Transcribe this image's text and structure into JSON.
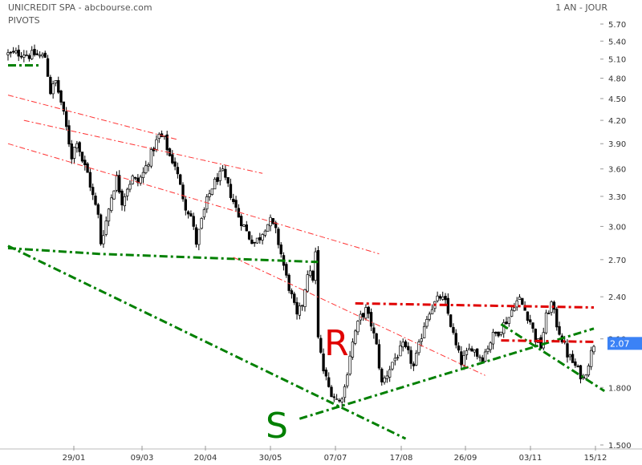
{
  "header": {
    "title": "UNICREDIT SPA - abcbourse.com",
    "subtitle": "PIVOTS",
    "period": "1 AN - JOUR"
  },
  "colors": {
    "support": "#008000",
    "resistance": "#e00000",
    "channel": "#ff3333",
    "candle": "#000000",
    "last_price_bg": "#3b82f6"
  },
  "markers": {
    "resistance_letter": "R",
    "support_letter": "S"
  },
  "chart_data": {
    "type": "candlestick",
    "title": "UNICREDIT SPA - abcbourse.com",
    "indicator": "PIVOTS",
    "period": "1 AN - JOUR",
    "y_scale": "log",
    "ylim": [
      1.5,
      5.7
    ],
    "y_ticks": [
      "5.70",
      "5.40",
      "5.10",
      "4.80",
      "4.50",
      "4.20",
      "3.90",
      "3.60",
      "3.30",
      "3.00",
      "2.70",
      "2.40",
      "2.10",
      "1.800",
      "1.500"
    ],
    "x_ticks": [
      "29/01",
      "09/03",
      "20/04",
      "30/05",
      "07/07",
      "17/08",
      "26/09",
      "03/11",
      "15/12"
    ],
    "last_price": "2.07",
    "price_path": [
      [
        0,
        5.18
      ],
      [
        6,
        5.2
      ],
      [
        8,
        5.16
      ],
      [
        10,
        5.18
      ],
      [
        12,
        5.15
      ],
      [
        14,
        5.14
      ],
      [
        16,
        4.6
      ],
      [
        18,
        4.75
      ],
      [
        20,
        4.45
      ],
      [
        22,
        4.1
      ],
      [
        24,
        3.75
      ],
      [
        26,
        3.95
      ],
      [
        28,
        3.7
      ],
      [
        30,
        3.55
      ],
      [
        32,
        3.3
      ],
      [
        34,
        3.1
      ],
      [
        35,
        2.85
      ],
      [
        37,
        3.05
      ],
      [
        39,
        3.3
      ],
      [
        41,
        3.5
      ],
      [
        43,
        3.25
      ],
      [
        45,
        3.4
      ],
      [
        47,
        3.5
      ],
      [
        49,
        3.45
      ],
      [
        51,
        3.55
      ],
      [
        53,
        3.7
      ],
      [
        55,
        3.85
      ],
      [
        57,
        4.0
      ],
      [
        59,
        3.95
      ],
      [
        61,
        3.75
      ],
      [
        63,
        3.65
      ],
      [
        65,
        3.4
      ],
      [
        67,
        3.2
      ],
      [
        69,
        3.1
      ],
      [
        71,
        2.85
      ],
      [
        73,
        3.05
      ],
      [
        75,
        3.25
      ],
      [
        77,
        3.4
      ],
      [
        79,
        3.5
      ],
      [
        81,
        3.55
      ],
      [
        83,
        3.4
      ],
      [
        85,
        3.25
      ],
      [
        87,
        3.1
      ],
      [
        89,
        3.0
      ],
      [
        91,
        2.9
      ],
      [
        93,
        2.85
      ],
      [
        95,
        2.9
      ],
      [
        97,
        3.0
      ],
      [
        99,
        3.05
      ],
      [
        101,
        2.95
      ],
      [
        103,
        2.75
      ],
      [
        105,
        2.55
      ],
      [
        107,
        2.4
      ],
      [
        109,
        2.25
      ],
      [
        111,
        2.35
      ],
      [
        113,
        2.6
      ],
      [
        115,
        2.55
      ],
      [
        116,
        2.75
      ],
      [
        117,
        2.1
      ],
      [
        119,
        1.9
      ],
      [
        121,
        1.8
      ],
      [
        123,
        1.75
      ],
      [
        125,
        1.72
      ],
      [
        127,
        1.8
      ],
      [
        129,
        2.0
      ],
      [
        131,
        2.15
      ],
      [
        133,
        2.25
      ],
      [
        135,
        2.3
      ],
      [
        137,
        2.2
      ],
      [
        139,
        2.05
      ],
      [
        141,
        1.82
      ],
      [
        143,
        1.88
      ],
      [
        145,
        1.95
      ],
      [
        147,
        2.0
      ],
      [
        149,
        2.05
      ],
      [
        151,
        2.0
      ],
      [
        153,
        1.92
      ],
      [
        155,
        2.05
      ],
      [
        157,
        2.2
      ],
      [
        159,
        2.3
      ],
      [
        161,
        2.35
      ],
      [
        163,
        2.4
      ],
      [
        165,
        2.35
      ],
      [
        167,
        2.2
      ],
      [
        169,
        2.05
      ],
      [
        171,
        1.95
      ],
      [
        173,
        2.0
      ],
      [
        175,
        2.05
      ],
      [
        177,
        2.0
      ],
      [
        179,
        1.98
      ],
      [
        181,
        2.05
      ],
      [
        183,
        2.12
      ],
      [
        185,
        2.15
      ],
      [
        187,
        2.2
      ],
      [
        189,
        2.25
      ],
      [
        191,
        2.35
      ],
      [
        193,
        2.38
      ],
      [
        195,
        2.3
      ],
      [
        197,
        2.22
      ],
      [
        199,
        2.1
      ],
      [
        201,
        2.05
      ],
      [
        203,
        2.25
      ],
      [
        205,
        2.35
      ],
      [
        207,
        2.2
      ],
      [
        209,
        2.1
      ],
      [
        211,
        2.0
      ],
      [
        213,
        1.95
      ],
      [
        215,
        1.9
      ],
      [
        217,
        1.85
      ],
      [
        219,
        1.95
      ],
      [
        221,
        2.07
      ]
    ],
    "trend_lines": [
      {
        "kind": "support",
        "style": "dash-dot",
        "points": [
          [
            0,
            5.0
          ],
          [
            12,
            5.0
          ]
        ]
      },
      {
        "kind": "support",
        "style": "dash-dot",
        "points": [
          [
            0,
            2.8
          ],
          [
            34,
            2.75
          ],
          [
            117,
            2.68
          ]
        ]
      },
      {
        "kind": "support",
        "style": "dash-dot",
        "points": [
          [
            0,
            2.82
          ],
          [
            150,
            1.53
          ]
        ]
      },
      {
        "kind": "support",
        "style": "dash-dot",
        "points": [
          [
            110,
            1.63
          ],
          [
            221,
            2.17
          ]
        ]
      },
      {
        "kind": "support",
        "style": "dash-dot",
        "points": [
          [
            186,
            2.2
          ],
          [
            225,
            1.78
          ]
        ]
      },
      {
        "kind": "resistance",
        "style": "dash-dot",
        "points": [
          [
            131,
            2.35
          ],
          [
            221,
            2.32
          ]
        ]
      },
      {
        "kind": "resistance",
        "style": "dash-dot",
        "points": [
          [
            186,
            2.09
          ],
          [
            221,
            2.08
          ]
        ]
      },
      {
        "kind": "channel",
        "style": "dash-dot-thin",
        "points": [
          [
            0,
            4.55
          ],
          [
            64,
            3.95
          ]
        ]
      },
      {
        "kind": "channel",
        "style": "dash-dot-thin",
        "points": [
          [
            6,
            4.2
          ],
          [
            96,
            3.55
          ]
        ]
      },
      {
        "kind": "channel",
        "style": "dash-dot-thin",
        "points": [
          [
            0,
            3.9
          ],
          [
            140,
            2.75
          ]
        ]
      },
      {
        "kind": "channel",
        "style": "dash-dot-thin",
        "points": [
          [
            85,
            2.72
          ],
          [
            180,
            1.87
          ]
        ]
      }
    ]
  }
}
